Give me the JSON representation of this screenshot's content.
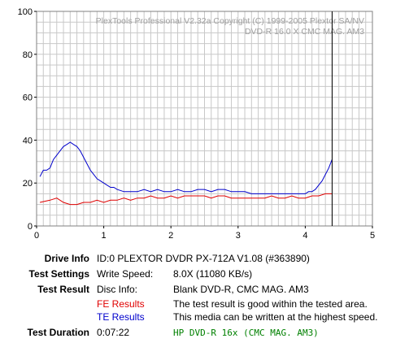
{
  "chart_data": {
    "type": "line",
    "title_line1": "PlexTools Professional V2.32a Copyright (C) 1999-2005 Plextor SA/NV",
    "title_line2": "DVD-R    16.0 X    CMC MAG. AM3",
    "xlim": [
      0,
      5
    ],
    "ylim": [
      0,
      100
    ],
    "xticks": [
      "0",
      "1",
      "2",
      "3",
      "4",
      "5"
    ],
    "yticks": [
      "0",
      "20",
      "40",
      "60",
      "80",
      "100"
    ],
    "grid": true,
    "marker_x": 4.4,
    "series": [
      {
        "name": "TE Results",
        "color": "#0000cc",
        "x": [
          0.05,
          0.1,
          0.15,
          0.2,
          0.25,
          0.3,
          0.35,
          0.4,
          0.45,
          0.5,
          0.55,
          0.6,
          0.65,
          0.7,
          0.75,
          0.8,
          0.85,
          0.9,
          0.95,
          1.0,
          1.05,
          1.1,
          1.15,
          1.2,
          1.3,
          1.4,
          1.5,
          1.6,
          1.7,
          1.8,
          1.9,
          2.0,
          2.1,
          2.2,
          2.3,
          2.4,
          2.5,
          2.6,
          2.7,
          2.8,
          2.9,
          3.0,
          3.1,
          3.2,
          3.3,
          3.4,
          3.5,
          3.6,
          3.7,
          3.8,
          3.9,
          4.0,
          4.05,
          4.1,
          4.15,
          4.2,
          4.25,
          4.3,
          4.35,
          4.4
        ],
        "y": [
          23,
          26,
          26,
          27,
          31,
          33,
          35,
          37,
          38,
          39,
          38,
          37,
          35,
          32,
          29,
          26,
          24,
          22,
          21,
          20,
          19,
          18,
          18,
          17,
          16,
          16,
          16,
          17,
          16,
          17,
          16,
          16,
          17,
          16,
          16,
          17,
          17,
          16,
          17,
          17,
          16,
          16,
          16,
          15,
          15,
          15,
          15,
          15,
          15,
          15,
          15,
          15,
          16,
          16,
          17,
          19,
          21,
          24,
          27,
          31
        ]
      },
      {
        "name": "FE Results",
        "color": "#e00000",
        "x": [
          0.05,
          0.2,
          0.3,
          0.4,
          0.5,
          0.6,
          0.7,
          0.8,
          0.9,
          1.0,
          1.1,
          1.2,
          1.3,
          1.4,
          1.5,
          1.6,
          1.7,
          1.8,
          1.9,
          2.0,
          2.1,
          2.2,
          2.3,
          2.4,
          2.5,
          2.6,
          2.7,
          2.8,
          2.9,
          3.0,
          3.1,
          3.2,
          3.3,
          3.4,
          3.5,
          3.6,
          3.7,
          3.8,
          3.9,
          4.0,
          4.1,
          4.2,
          4.3,
          4.4
        ],
        "y": [
          11,
          12,
          13,
          11,
          10,
          10,
          11,
          11,
          12,
          11,
          12,
          12,
          13,
          12,
          13,
          13,
          14,
          13,
          13,
          14,
          13,
          14,
          14,
          14,
          14,
          13,
          14,
          14,
          13,
          13,
          13,
          13,
          13,
          13,
          14,
          13,
          13,
          14,
          13,
          13,
          14,
          14,
          15,
          15
        ]
      }
    ]
  },
  "info": {
    "drive_info_label": "Drive Info",
    "drive_info_value": "ID:0 PLEXTOR DVDR PX-712A V1.08 (#363890)",
    "test_settings_label": "Test Settings",
    "write_speed_label": "Write Speed:",
    "write_speed_value": "8.0X (11080 KB/s)",
    "test_result_label": "Test Result",
    "disc_info_label": "Disc Info:",
    "disc_info_value": "Blank DVD-R, CMC MAG. AM3",
    "fe_label": "FE Results",
    "fe_value": "The test result is good within the tested area.",
    "te_label": "TE Results",
    "te_value": "This media can be written at the highest speed.",
    "test_duration_label": "Test Duration",
    "test_duration_value": "0:07:22",
    "footer_green": "HP DVD-R 16x (CMC MAG. AM3)"
  },
  "colors": {
    "fe": "#e00000",
    "te": "#0000cc",
    "footer": "#008000",
    "grid": "#c8c8c8"
  }
}
